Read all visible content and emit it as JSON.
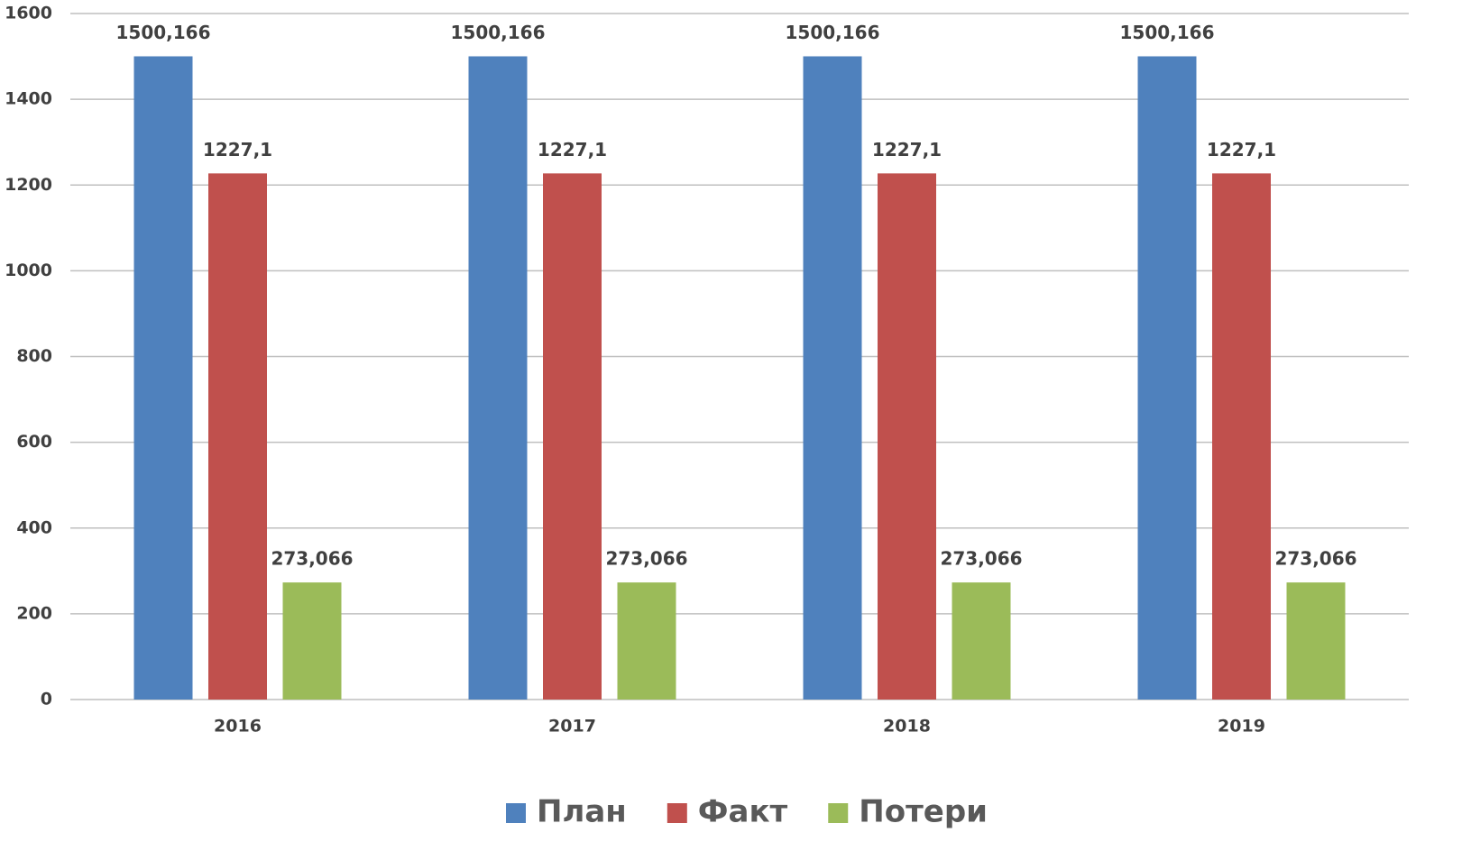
{
  "chart_data": {
    "type": "bar",
    "categories": [
      "2016",
      "2017",
      "2018",
      "2019"
    ],
    "series": [
      {
        "name": "План",
        "color": "#4f81bd",
        "values": [
          1500.166,
          1500.166,
          1500.166,
          1500.166
        ],
        "value_labels": [
          "1500,166",
          "1500,166",
          "1500,166",
          "1500,166"
        ]
      },
      {
        "name": "Факт",
        "color": "#c0504d",
        "values": [
          1227.1,
          1227.1,
          1227.1,
          1227.1
        ],
        "value_labels": [
          "1227,1",
          "1227,1",
          "1227,1",
          "1227,1"
        ]
      },
      {
        "name": "Потери",
        "color": "#9bbb59",
        "values": [
          273.066,
          273.066,
          273.066,
          273.066
        ],
        "value_labels": [
          "273,066",
          "273,066",
          "273,066",
          "273,066"
        ]
      }
    ],
    "ylim": [
      0,
      1600
    ],
    "yticks": [
      0,
      200,
      400,
      600,
      800,
      1000,
      1200,
      1400,
      1600
    ],
    "grid": true,
    "legend": "bottom"
  }
}
